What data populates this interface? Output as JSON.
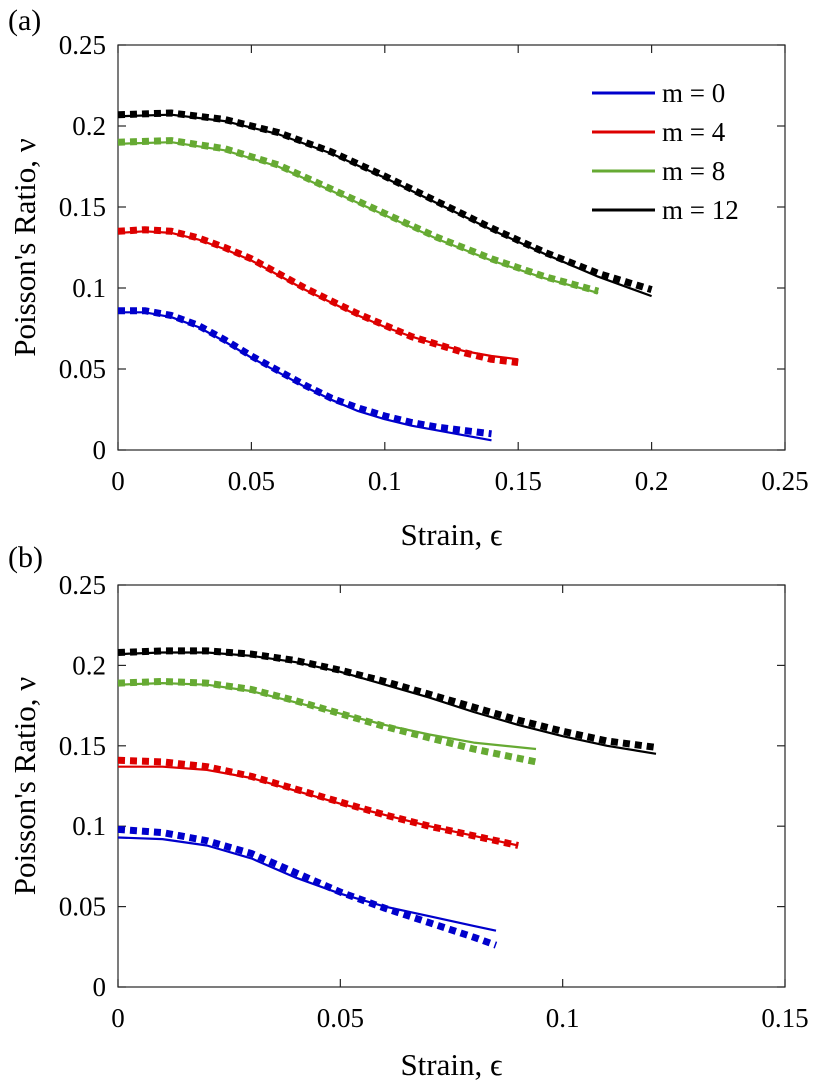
{
  "chart_data": [
    {
      "type": "line",
      "panel_label": "(a)",
      "xlabel": "Strain, ϵ",
      "ylabel": "Poisson's Ratio, ν",
      "xlim": [
        0,
        0.25
      ],
      "ylim": [
        0,
        0.25
      ],
      "xticks": [
        0,
        0.05,
        0.1,
        0.15,
        0.2,
        0.25
      ],
      "xtick_labels": [
        "0",
        "0.05",
        "0.1",
        "0.15",
        "0.2",
        "0.25"
      ],
      "yticks": [
        0,
        0.05,
        0.1,
        0.15,
        0.2,
        0.25
      ],
      "ytick_labels": [
        "0",
        "0.05",
        "0.1",
        "0.15",
        "0.2",
        "0.25"
      ],
      "grid": false,
      "legend": {
        "position": "top-right",
        "entries": [
          {
            "label": "m = 0",
            "color": "#0000cc"
          },
          {
            "label": "m = 4",
            "color": "#dd0000"
          },
          {
            "label": "m = 8",
            "color": "#66aa33"
          },
          {
            "label": "m = 12",
            "color": "#000000"
          }
        ]
      },
      "series": [
        {
          "color": "#0000cc",
          "style": "solid",
          "x": [
            0,
            0.01,
            0.02,
            0.03,
            0.04,
            0.05,
            0.06,
            0.07,
            0.08,
            0.09,
            0.1,
            0.11,
            0.12,
            0.13,
            0.14
          ],
          "y": [
            0.085,
            0.085,
            0.082,
            0.076,
            0.067,
            0.057,
            0.048,
            0.039,
            0.031,
            0.024,
            0.019,
            0.015,
            0.012,
            0.009,
            0.006
          ]
        },
        {
          "color": "#0000cc",
          "style": "dotted",
          "x": [
            0,
            0.01,
            0.02,
            0.03,
            0.04,
            0.05,
            0.06,
            0.07,
            0.08,
            0.09,
            0.1,
            0.11,
            0.12,
            0.13,
            0.14
          ],
          "y": [
            0.086,
            0.086,
            0.083,
            0.077,
            0.068,
            0.058,
            0.049,
            0.04,
            0.032,
            0.026,
            0.021,
            0.017,
            0.014,
            0.012,
            0.01
          ]
        },
        {
          "color": "#dd0000",
          "style": "solid",
          "x": [
            0,
            0.01,
            0.02,
            0.03,
            0.04,
            0.05,
            0.06,
            0.07,
            0.08,
            0.09,
            0.1,
            0.11,
            0.12,
            0.13,
            0.14,
            0.15
          ],
          "y": [
            0.134,
            0.135,
            0.134,
            0.13,
            0.124,
            0.117,
            0.108,
            0.099,
            0.091,
            0.083,
            0.076,
            0.07,
            0.065,
            0.061,
            0.058,
            0.056
          ]
        },
        {
          "color": "#dd0000",
          "style": "dotted",
          "x": [
            0,
            0.01,
            0.02,
            0.03,
            0.04,
            0.05,
            0.06,
            0.07,
            0.08,
            0.09,
            0.1,
            0.11,
            0.12,
            0.13,
            0.14,
            0.15
          ],
          "y": [
            0.135,
            0.136,
            0.135,
            0.131,
            0.125,
            0.118,
            0.109,
            0.1,
            0.092,
            0.084,
            0.077,
            0.07,
            0.065,
            0.06,
            0.056,
            0.054
          ]
        },
        {
          "color": "#66aa33",
          "style": "solid",
          "x": [
            0,
            0.02,
            0.04,
            0.06,
            0.08,
            0.1,
            0.12,
            0.14,
            0.16,
            0.18
          ],
          "y": [
            0.189,
            0.19,
            0.185,
            0.175,
            0.16,
            0.145,
            0.13,
            0.117,
            0.106,
            0.097
          ]
        },
        {
          "color": "#66aa33",
          "style": "dotted",
          "x": [
            0,
            0.02,
            0.04,
            0.06,
            0.08,
            0.1,
            0.12,
            0.14,
            0.16,
            0.18
          ],
          "y": [
            0.19,
            0.191,
            0.186,
            0.176,
            0.161,
            0.146,
            0.131,
            0.118,
            0.107,
            0.098
          ]
        },
        {
          "color": "#000000",
          "style": "solid",
          "x": [
            0,
            0.02,
            0.04,
            0.06,
            0.08,
            0.1,
            0.12,
            0.14,
            0.16,
            0.18,
            0.2
          ],
          "y": [
            0.206,
            0.207,
            0.203,
            0.195,
            0.183,
            0.168,
            0.152,
            0.136,
            0.121,
            0.107,
            0.095
          ]
        },
        {
          "color": "#000000",
          "style": "dotted",
          "x": [
            0,
            0.02,
            0.04,
            0.06,
            0.08,
            0.1,
            0.12,
            0.14,
            0.16,
            0.18,
            0.2
          ],
          "y": [
            0.207,
            0.208,
            0.204,
            0.196,
            0.184,
            0.169,
            0.153,
            0.137,
            0.122,
            0.109,
            0.099
          ]
        }
      ]
    },
    {
      "type": "line",
      "panel_label": "(b)",
      "xlabel": "Strain, ϵ",
      "ylabel": "Poisson's Ratio, ν",
      "xlim": [
        0,
        0.15
      ],
      "ylim": [
        0,
        0.25
      ],
      "xticks": [
        0,
        0.05,
        0.1,
        0.15
      ],
      "xtick_labels": [
        "0",
        "0.05",
        "0.1",
        "0.15"
      ],
      "yticks": [
        0,
        0.05,
        0.1,
        0.15,
        0.2,
        0.25
      ],
      "ytick_labels": [
        "0",
        "0.05",
        "0.1",
        "0.15",
        "0.2",
        "0.25"
      ],
      "grid": false,
      "series": [
        {
          "color": "#0000cc",
          "style": "solid",
          "x": [
            0,
            0.01,
            0.02,
            0.03,
            0.04,
            0.05,
            0.06,
            0.07,
            0.08,
            0.085
          ],
          "y": [
            0.093,
            0.092,
            0.088,
            0.08,
            0.068,
            0.058,
            0.05,
            0.044,
            0.038,
            0.035
          ]
        },
        {
          "color": "#0000cc",
          "style": "dotted",
          "x": [
            0,
            0.01,
            0.02,
            0.03,
            0.04,
            0.05,
            0.06,
            0.07,
            0.08,
            0.085
          ],
          "y": [
            0.098,
            0.096,
            0.091,
            0.083,
            0.071,
            0.059,
            0.049,
            0.04,
            0.031,
            0.026
          ]
        },
        {
          "color": "#dd0000",
          "style": "solid",
          "x": [
            0,
            0.01,
            0.02,
            0.03,
            0.04,
            0.05,
            0.06,
            0.07,
            0.08,
            0.09
          ],
          "y": [
            0.137,
            0.137,
            0.135,
            0.13,
            0.122,
            0.114,
            0.107,
            0.1,
            0.094,
            0.088
          ]
        },
        {
          "color": "#dd0000",
          "style": "dotted",
          "x": [
            0,
            0.01,
            0.02,
            0.03,
            0.04,
            0.05,
            0.06,
            0.07,
            0.08,
            0.09
          ],
          "y": [
            0.141,
            0.14,
            0.137,
            0.131,
            0.123,
            0.115,
            0.107,
            0.1,
            0.094,
            0.088
          ]
        },
        {
          "color": "#66aa33",
          "style": "solid",
          "x": [
            0,
            0.01,
            0.02,
            0.03,
            0.04,
            0.05,
            0.06,
            0.07,
            0.08,
            0.094
          ],
          "y": [
            0.188,
            0.189,
            0.188,
            0.184,
            0.177,
            0.17,
            0.163,
            0.157,
            0.152,
            0.148
          ]
        },
        {
          "color": "#66aa33",
          "style": "dotted",
          "x": [
            0,
            0.01,
            0.02,
            0.03,
            0.04,
            0.05,
            0.06,
            0.07,
            0.08,
            0.094
          ],
          "y": [
            0.189,
            0.19,
            0.189,
            0.185,
            0.178,
            0.17,
            0.162,
            0.155,
            0.148,
            0.14
          ]
        },
        {
          "color": "#000000",
          "style": "solid",
          "x": [
            0,
            0.01,
            0.02,
            0.03,
            0.04,
            0.05,
            0.06,
            0.07,
            0.08,
            0.09,
            0.1,
            0.11,
            0.121
          ],
          "y": [
            0.207,
            0.208,
            0.208,
            0.206,
            0.202,
            0.196,
            0.188,
            0.18,
            0.171,
            0.163,
            0.156,
            0.15,
            0.145
          ]
        },
        {
          "color": "#000000",
          "style": "dotted",
          "x": [
            0,
            0.01,
            0.02,
            0.03,
            0.04,
            0.05,
            0.06,
            0.07,
            0.08,
            0.09,
            0.1,
            0.11,
            0.121
          ],
          "y": [
            0.208,
            0.209,
            0.209,
            0.207,
            0.203,
            0.197,
            0.19,
            0.182,
            0.174,
            0.166,
            0.159,
            0.153,
            0.149
          ]
        }
      ]
    }
  ]
}
